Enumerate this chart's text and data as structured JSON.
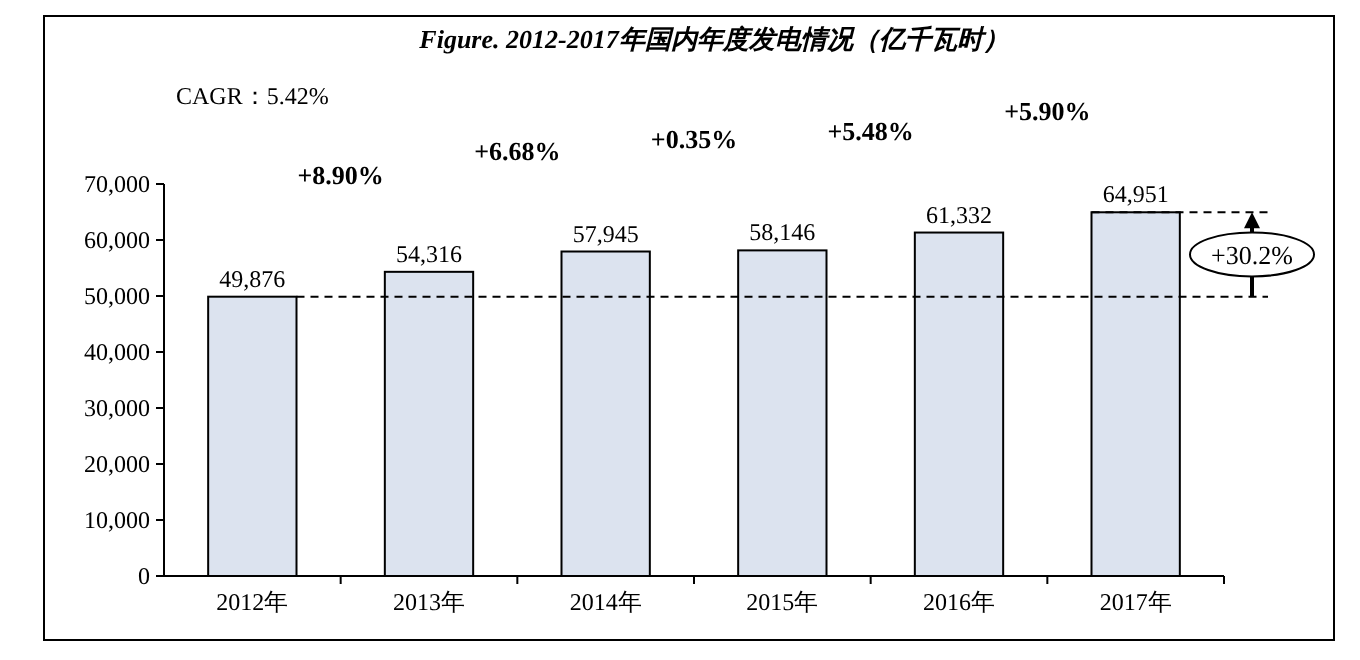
{
  "chart_data": {
    "type": "bar",
    "title": "Figure. 2012-2017年国内年度发电情况（亿千瓦时）",
    "categories": [
      "2012年",
      "2013年",
      "2014年",
      "2015年",
      "2016年",
      "2017年"
    ],
    "values": [
      49876,
      54316,
      57945,
      58146,
      61332,
      64951
    ],
    "color": "#dce3ef",
    "value_labels": [
      "49,876",
      "54,316",
      "57,945",
      "58,146",
      "61,332",
      "64,951"
    ],
    "ylim": [
      0,
      70000
    ],
    "yticks": [
      {
        "value": 0,
        "label": "0"
      },
      {
        "value": 10000,
        "label": "10,000"
      },
      {
        "value": 20000,
        "label": "20,000"
      },
      {
        "value": 30000,
        "label": "30,000"
      },
      {
        "value": 40000,
        "label": "40,000"
      },
      {
        "value": 50000,
        "label": "50,000"
      },
      {
        "value": 60000,
        "label": "60,000"
      },
      {
        "value": 70000,
        "label": "70,000"
      }
    ],
    "ref_lines": [
      {
        "axis": "y",
        "value": 49876,
        "line_style": "dashed"
      },
      {
        "axis": "y",
        "value": 64951,
        "line_style": "dashed"
      }
    ],
    "annotations": [
      "CAGR：5.42%",
      "+8.90%",
      "+6.68%",
      "+0.35%",
      "+5.48%",
      "+5.90%",
      "+30.2%"
    ],
    "grid": false
  }
}
